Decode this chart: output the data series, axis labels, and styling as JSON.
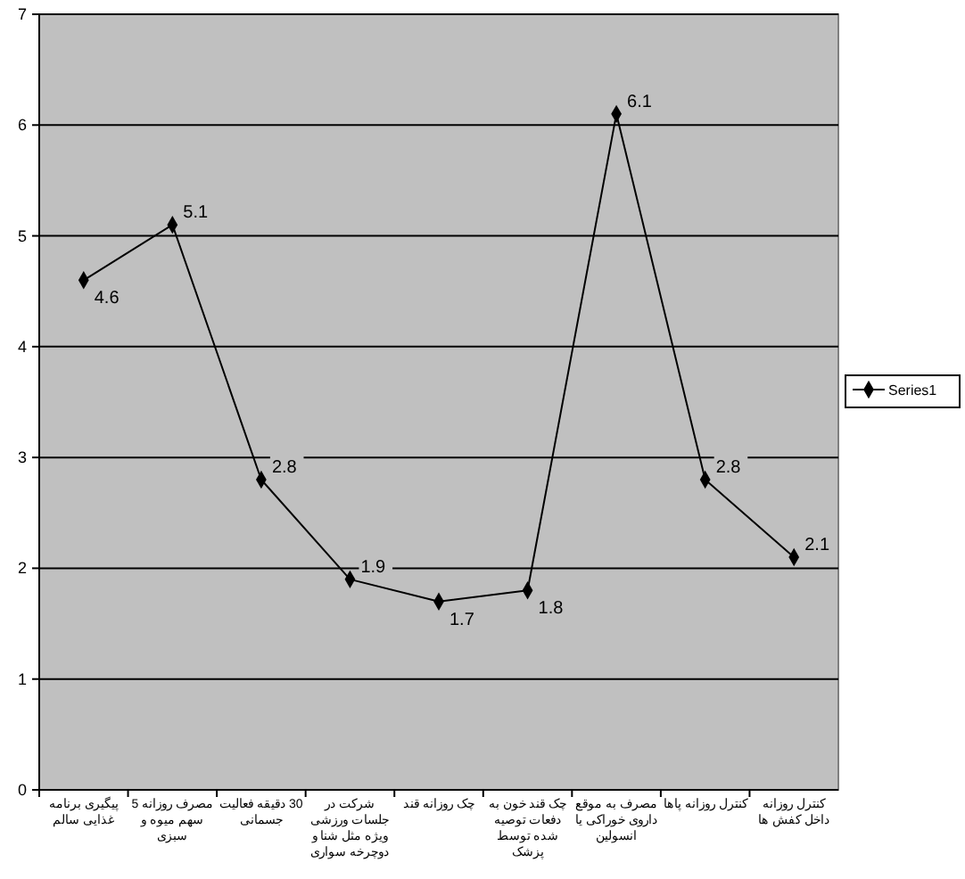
{
  "chart_data": {
    "type": "line",
    "categories": [
      "پیگیری برنامه غذایی سالم",
      "مصرف روزانه 5 سهم میوه و سبزی",
      "30 دقیقه فعالیت جسمانی",
      "شرکت در جلسات ورزشی ویژه مثل شنا و دوچرخه سواری",
      "چک روزانه قند",
      "چک قند خون به دفعات توصیه شده توسط پزشک",
      "مصرف به موقع داروی خوراکی یا انسولین",
      "کنترل روزانه پاها",
      "کنترل روزانه داخل کفش ها"
    ],
    "series": [
      {
        "name": "Series1",
        "color": "#000000",
        "values": [
          4.6,
          5.1,
          2.8,
          1.9,
          1.7,
          1.8,
          6.1,
          2.8,
          2.1
        ]
      }
    ],
    "ylim": [
      0,
      7
    ],
    "yticks": [
      0,
      1,
      2,
      3,
      4,
      5,
      6,
      7
    ],
    "grid": "y",
    "legend": "right",
    "marker": "diamond",
    "line_style": "solid",
    "data_labels": true
  }
}
